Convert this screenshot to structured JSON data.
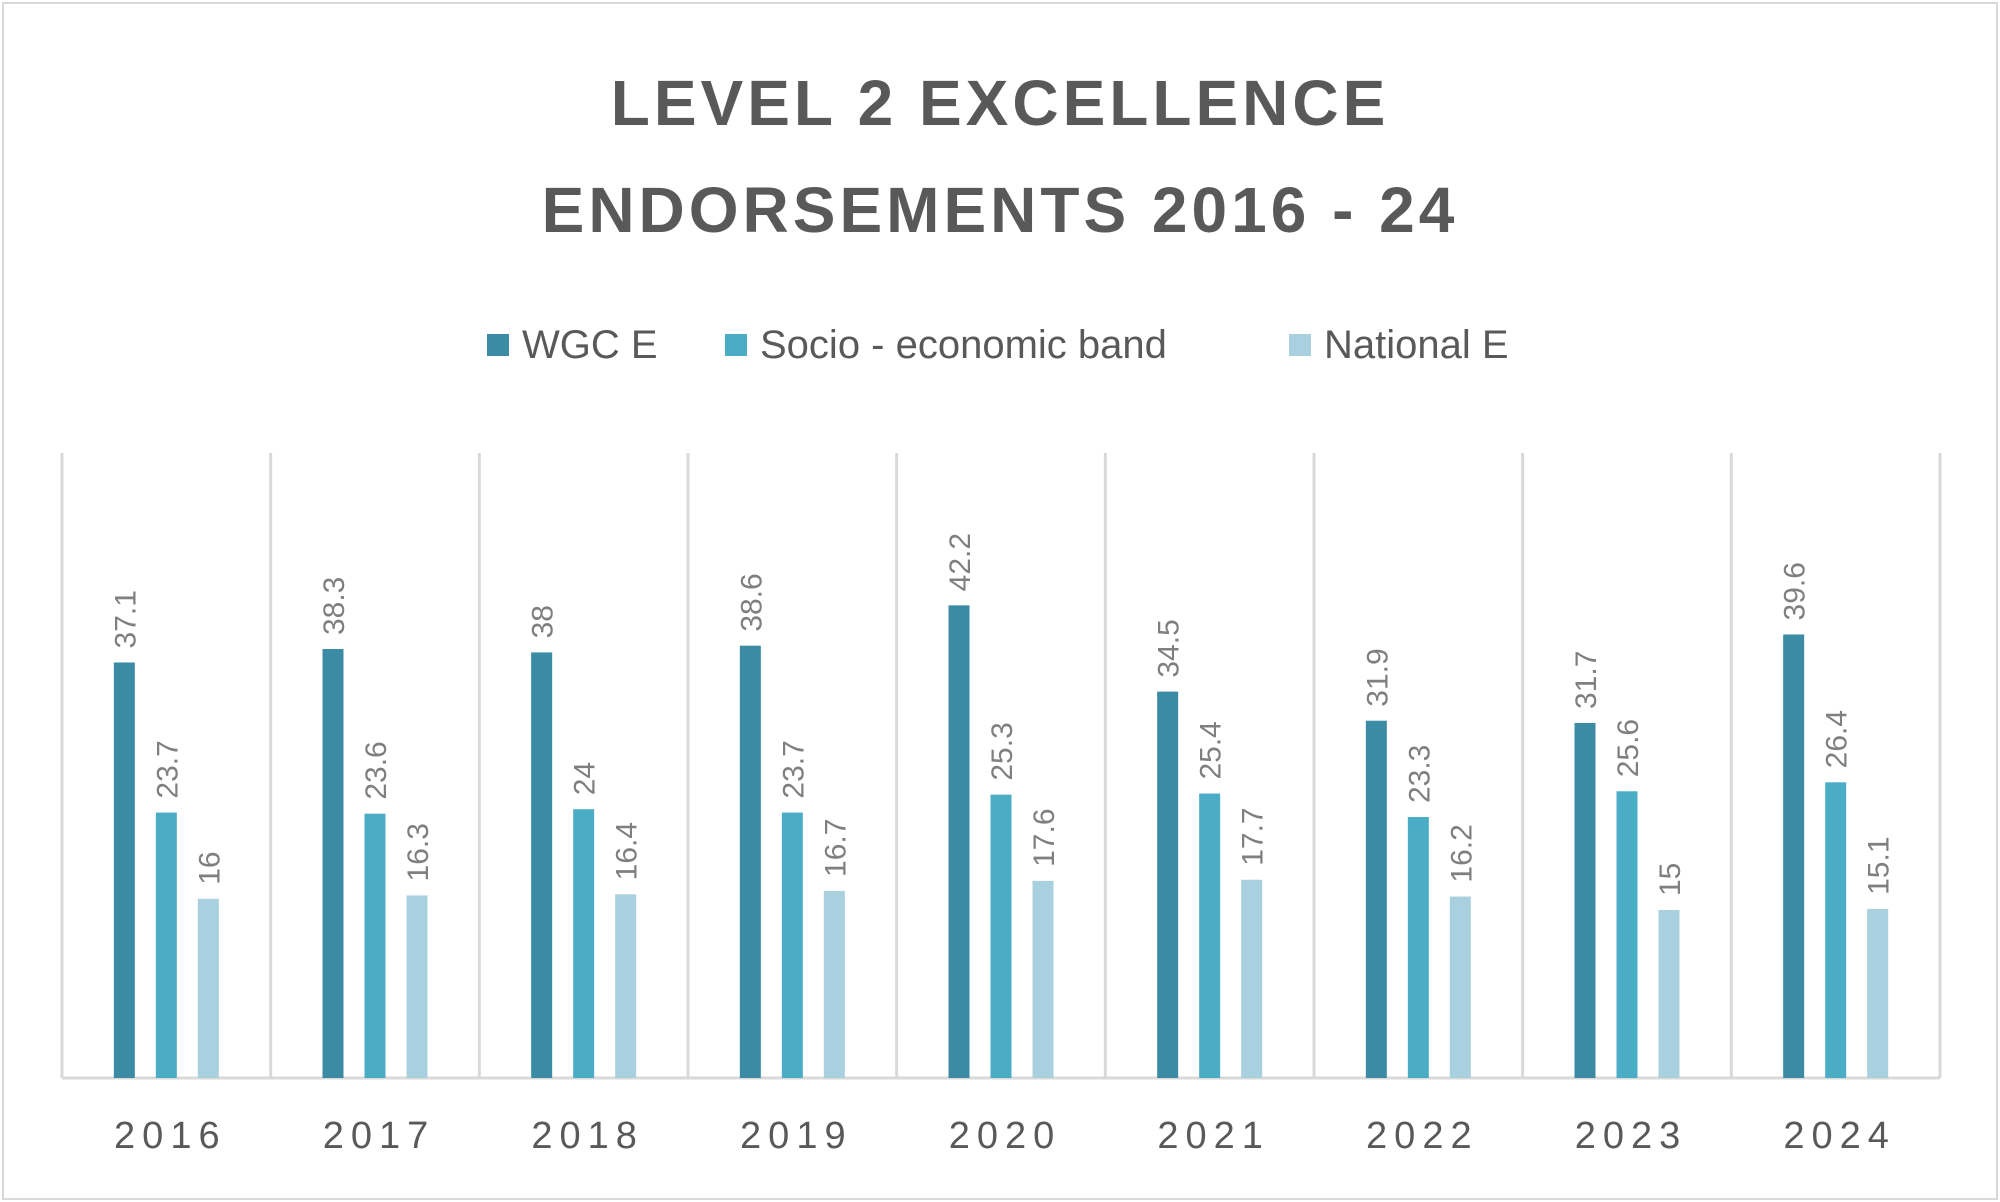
{
  "chart_data": {
    "type": "bar",
    "title_lines": [
      "LEVEL 2 EXCELLENCE",
      "ENDORSEMENTS 2016 - 24"
    ],
    "categories": [
      "2016",
      "2017",
      "2018",
      "2019",
      "2020",
      "2021",
      "2022",
      "2023",
      "2024"
    ],
    "series": [
      {
        "name": "WGC E",
        "color": "#3a8ba3",
        "values": [
          37.1,
          38.3,
          38,
          38.6,
          42.2,
          34.5,
          31.9,
          31.7,
          39.6
        ]
      },
      {
        "name": "Socio - economic band",
        "color": "#4bacc6",
        "values": [
          23.7,
          23.6,
          24,
          23.7,
          25.3,
          25.4,
          23.3,
          25.6,
          26.4
        ]
      },
      {
        "name": "National E",
        "color": "#a9d0de",
        "values": [
          16,
          16.3,
          16.4,
          16.7,
          17.6,
          17.7,
          16.2,
          15,
          15.1
        ]
      }
    ],
    "xlabel": "",
    "ylabel": "",
    "ylim": [
      0,
      45
    ],
    "grid": "vertical category separators",
    "legend_position": "top-center",
    "axis_color": "#d9d9d9",
    "label_color": "#7f7f7f",
    "text_color": "#595959"
  }
}
